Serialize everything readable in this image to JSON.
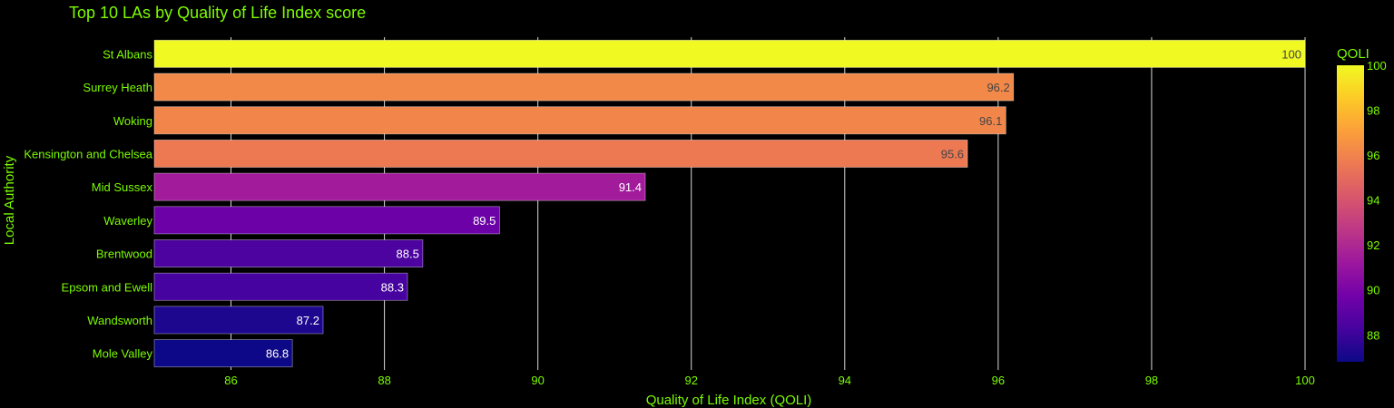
{
  "chart_data": {
    "type": "bar",
    "orientation": "horizontal",
    "title": "Top 10 LAs by Quality of Life Index score",
    "xlabel": "Quality of Life Index (QOLI)",
    "ylabel": "Local Authority",
    "xlim": [
      85,
      100
    ],
    "xticks": [
      86,
      88,
      90,
      92,
      94,
      96,
      98,
      100
    ],
    "grid": true,
    "categories": [
      "St Albans",
      "Surrey Heath",
      "Woking",
      "Kensington and Chelsea",
      "Mid Sussex",
      "Waverley",
      "Brentwood",
      "Epsom and Ewell",
      "Wandsworth",
      "Mole Valley"
    ],
    "values": [
      100,
      96.2,
      96.1,
      95.6,
      91.4,
      89.5,
      88.5,
      88.3,
      87.2,
      86.8
    ],
    "data_labels": [
      "100",
      "96.2",
      "96.1",
      "95.6",
      "91.4",
      "89.5",
      "88.5",
      "88.3",
      "87.2",
      "86.8"
    ],
    "colorscale": "plasma",
    "colorbar": {
      "title": "QOLI",
      "range": [
        86.8,
        100
      ],
      "ticks": [
        88,
        90,
        92,
        94,
        96,
        98,
        100
      ],
      "placement": "right"
    },
    "colors": {
      "background": "#000000",
      "text": "#7CFC00",
      "grid": "#d9d9d9"
    }
  }
}
